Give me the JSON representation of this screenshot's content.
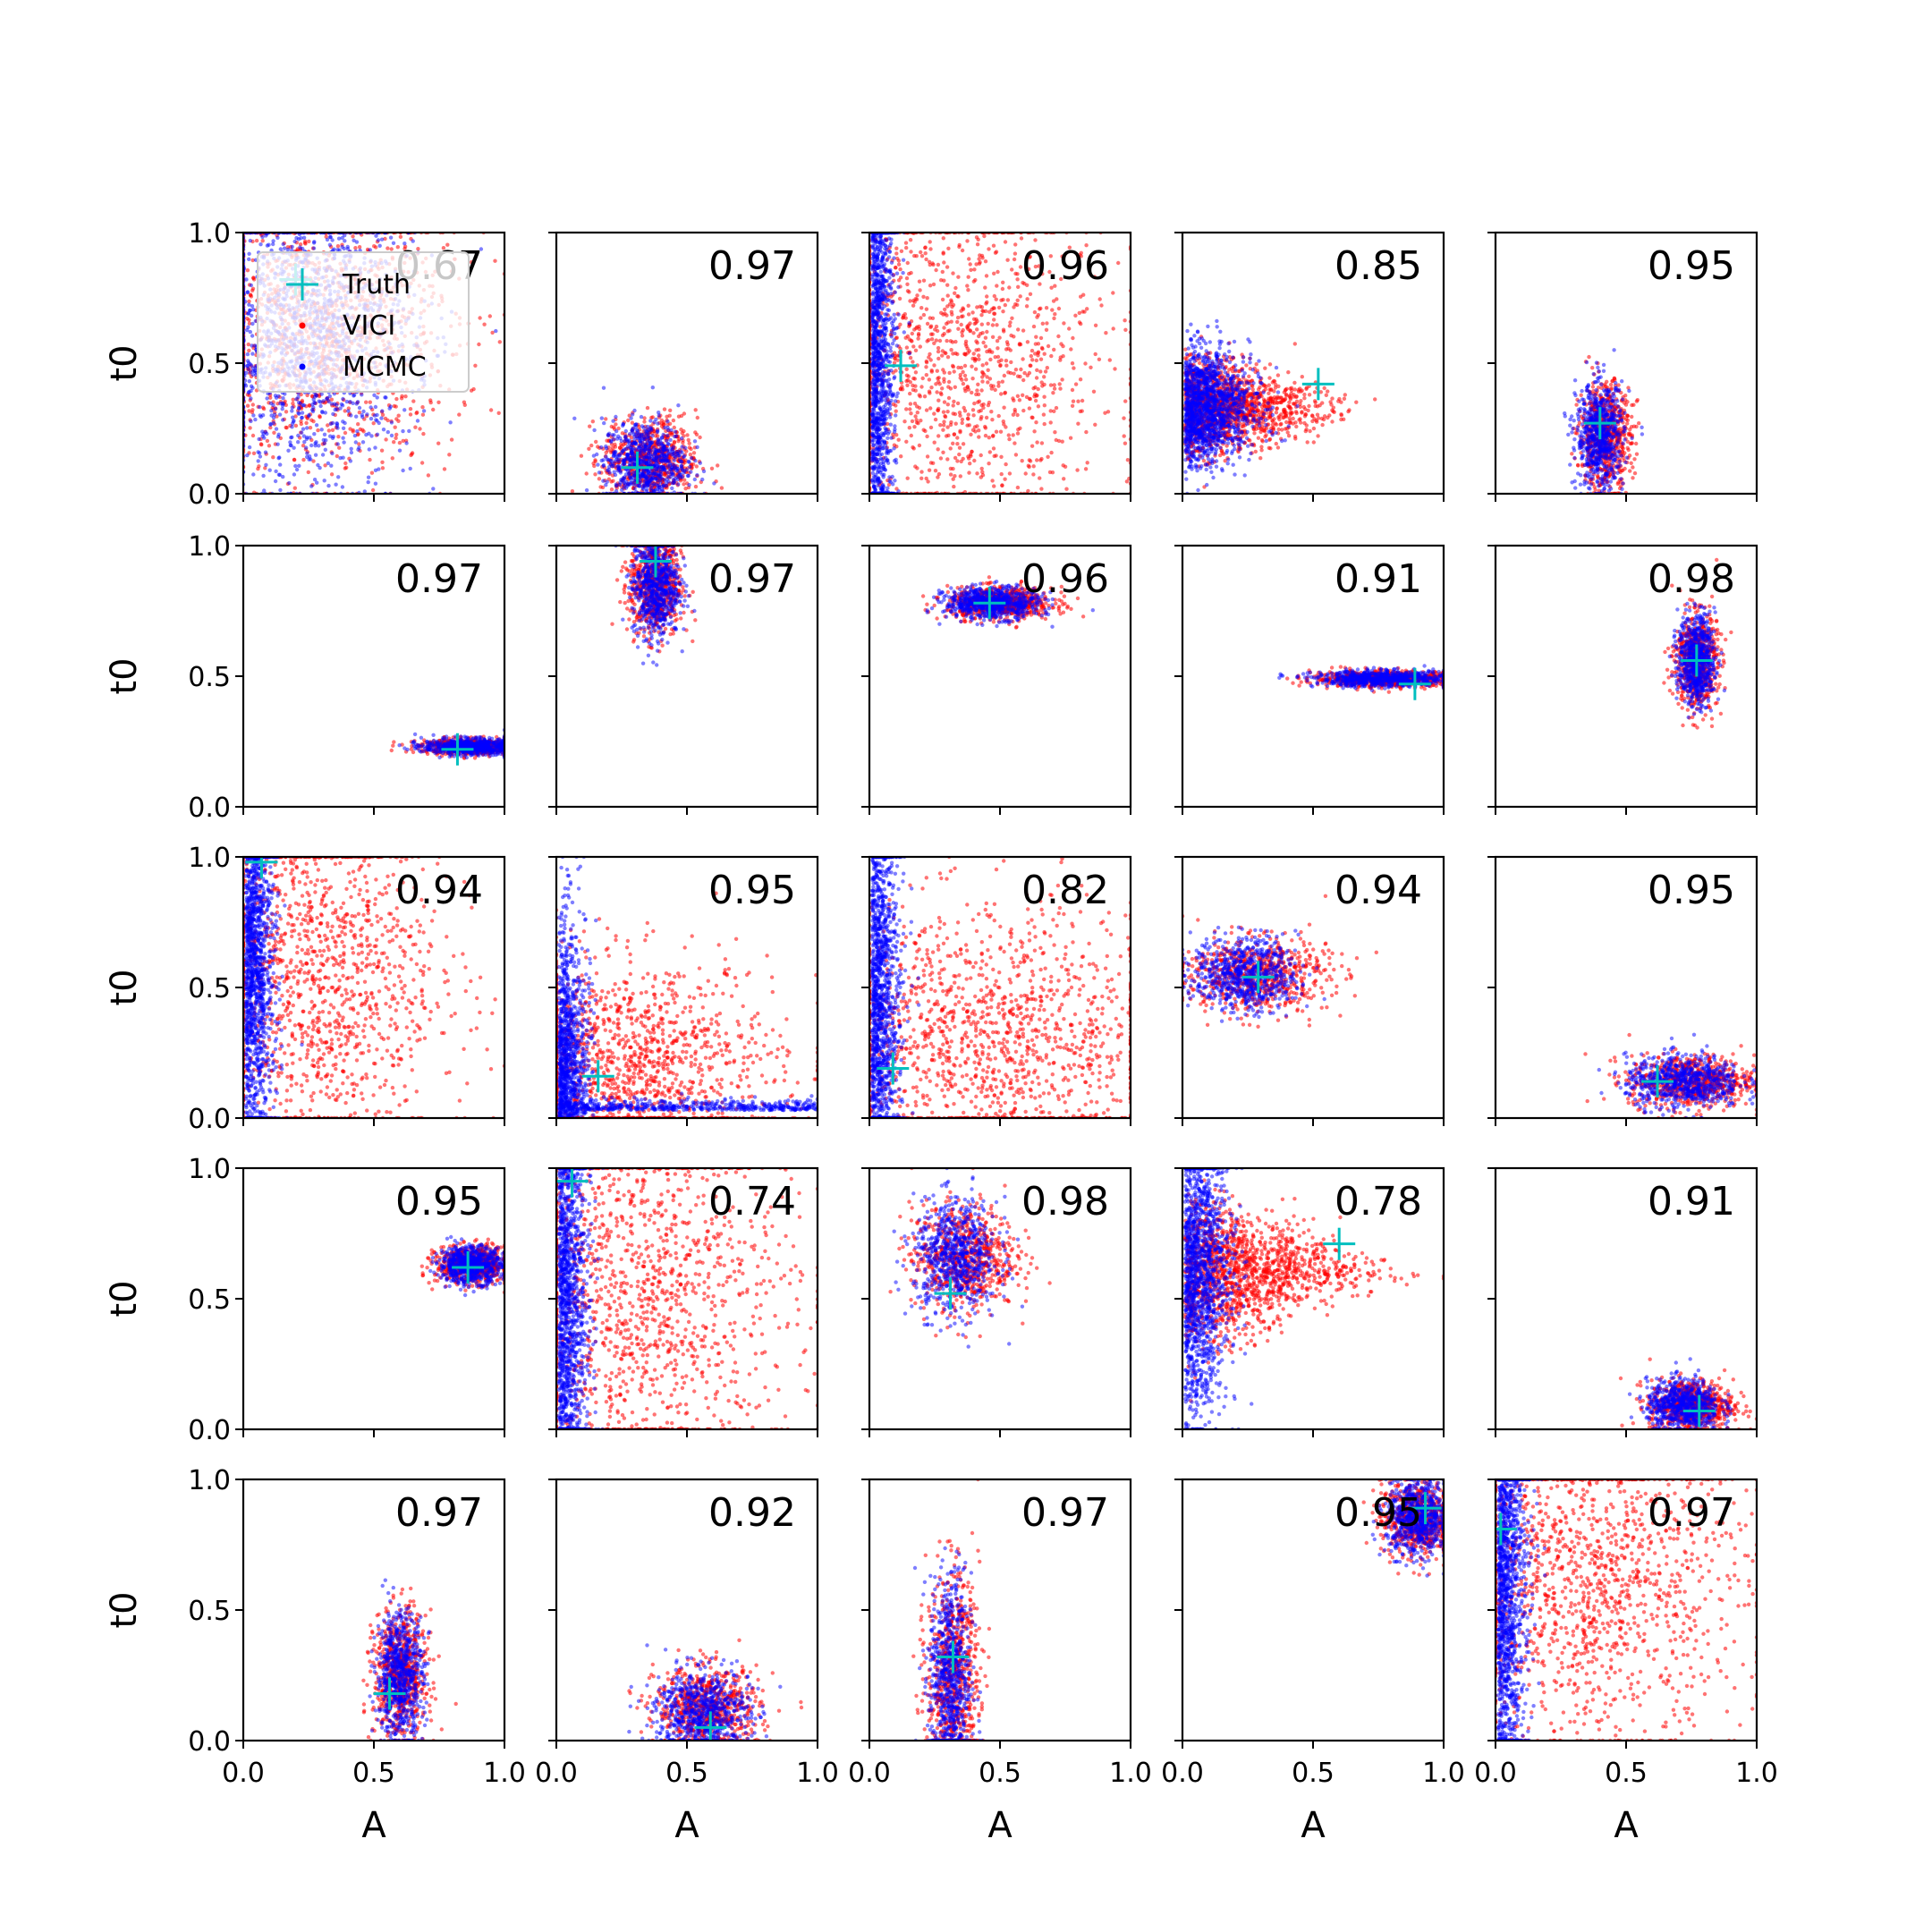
{
  "chart_data": {
    "type": "scatter",
    "grid_rows": 5,
    "grid_cols": 5,
    "xlabel": "A",
    "ylabel": "t0",
    "xlim": [
      0.0,
      1.0
    ],
    "ylim": [
      0.0,
      1.0
    ],
    "xticks": [
      "0.0",
      "0.5",
      "1.0"
    ],
    "yticks": [
      "0.0",
      "0.5",
      "1.0"
    ],
    "grid": false,
    "legend": {
      "placement": "upper-left of first panel",
      "entries": [
        {
          "label": "Truth",
          "marker": "plus",
          "color": "#00bfbf"
        },
        {
          "label": "VICI",
          "marker": "dot",
          "color": "#ff0000"
        },
        {
          "label": "MCMC",
          "marker": "dot",
          "color": "#0000ff"
        }
      ]
    },
    "colors": {
      "truth": "#00bfbf",
      "vici": "#ff0000",
      "mcmc": "#0000ff"
    },
    "panels": [
      {
        "overlap": "0.67",
        "truth": [
          0.2,
          0.82
        ],
        "kind": "wide",
        "vici": {
          "center": [
            0.3,
            0.6
          ],
          "spread": [
            0.25,
            0.25
          ]
        },
        "mcmc": {
          "center": [
            0.25,
            0.6
          ],
          "spread": [
            0.2,
            0.28
          ]
        }
      },
      {
        "overlap": "0.97",
        "truth": [
          0.31,
          0.1
        ],
        "kind": "blob",
        "vici": {
          "center": [
            0.36,
            0.13
          ],
          "spread": [
            0.09,
            0.08
          ]
        },
        "mcmc": {
          "center": [
            0.34,
            0.12
          ],
          "spread": [
            0.08,
            0.08
          ]
        }
      },
      {
        "overlap": "0.96",
        "truth": [
          0.12,
          0.49
        ],
        "kind": "lefttail",
        "vici": {
          "center": [
            0.3,
            0.5
          ],
          "spread": [
            0.3,
            0.32
          ]
        },
        "mcmc": {
          "center": [
            0.05,
            0.5
          ],
          "spread": [
            0.04,
            0.45
          ]
        }
      },
      {
        "overlap": "0.85",
        "truth": [
          0.52,
          0.42
        ],
        "kind": "horn",
        "vici": {
          "center": [
            0.25,
            0.33
          ],
          "spread": [
            0.22,
            0.1
          ]
        },
        "mcmc": {
          "center": [
            0.15,
            0.33
          ],
          "spread": [
            0.12,
            0.12
          ]
        }
      },
      {
        "overlap": "0.95",
        "truth": [
          0.4,
          0.27
        ],
        "kind": "blob",
        "vici": {
          "center": [
            0.42,
            0.22
          ],
          "spread": [
            0.05,
            0.1
          ]
        },
        "mcmc": {
          "center": [
            0.4,
            0.22
          ],
          "spread": [
            0.045,
            0.1
          ]
        }
      },
      {
        "overlap": "0.97",
        "truth": [
          0.82,
          0.22
        ],
        "kind": "blob",
        "vici": {
          "center": [
            0.88,
            0.23
          ],
          "spread": [
            0.1,
            0.015
          ]
        },
        "mcmc": {
          "center": [
            0.87,
            0.23
          ],
          "spread": [
            0.09,
            0.015
          ]
        }
      },
      {
        "overlap": "0.97",
        "truth": [
          0.38,
          0.94
        ],
        "kind": "blob",
        "vici": {
          "center": [
            0.38,
            0.85
          ],
          "spread": [
            0.05,
            0.1
          ]
        },
        "mcmc": {
          "center": [
            0.38,
            0.85
          ],
          "spread": [
            0.045,
            0.1
          ]
        }
      },
      {
        "overlap": "0.96",
        "truth": [
          0.46,
          0.78
        ],
        "kind": "blob",
        "vici": {
          "center": [
            0.5,
            0.78
          ],
          "spread": [
            0.1,
            0.03
          ]
        },
        "mcmc": {
          "center": [
            0.47,
            0.78
          ],
          "spread": [
            0.09,
            0.03
          ]
        }
      },
      {
        "overlap": "0.91",
        "truth": [
          0.89,
          0.47
        ],
        "kind": "blob",
        "vici": {
          "center": [
            0.78,
            0.49
          ],
          "spread": [
            0.14,
            0.015
          ]
        },
        "mcmc": {
          "center": [
            0.77,
            0.49
          ],
          "spread": [
            0.13,
            0.015
          ]
        }
      },
      {
        "overlap": "0.98",
        "truth": [
          0.77,
          0.56
        ],
        "kind": "blob",
        "vici": {
          "center": [
            0.77,
            0.56
          ],
          "spread": [
            0.04,
            0.09
          ]
        },
        "mcmc": {
          "center": [
            0.77,
            0.56
          ],
          "spread": [
            0.035,
            0.085
          ]
        }
      },
      {
        "overlap": "0.94",
        "truth": [
          0.07,
          0.98
        ],
        "kind": "lefttail",
        "vici": {
          "center": [
            0.25,
            0.55
          ],
          "spread": [
            0.25,
            0.35
          ]
        },
        "mcmc": {
          "center": [
            0.05,
            0.6
          ],
          "spread": [
            0.05,
            0.35
          ]
        }
      },
      {
        "overlap": "0.95",
        "truth": [
          0.16,
          0.16
        ],
        "kind": "corner",
        "vici": {
          "center": [
            0.25,
            0.2
          ],
          "spread": [
            0.3,
            0.2
          ]
        },
        "mcmc": {
          "center": [
            0.05,
            0.3
          ],
          "spread": [
            0.05,
            0.35
          ]
        }
      },
      {
        "overlap": "0.82",
        "truth": [
          0.09,
          0.19
        ],
        "kind": "lefttail",
        "vici": {
          "center": [
            0.45,
            0.3
          ],
          "spread": [
            0.35,
            0.25
          ]
        },
        "mcmc": {
          "center": [
            0.05,
            0.4
          ],
          "spread": [
            0.05,
            0.4
          ]
        }
      },
      {
        "overlap": "0.94",
        "truth": [
          0.29,
          0.54
        ],
        "kind": "blob",
        "vici": {
          "center": [
            0.28,
            0.55
          ],
          "spread": [
            0.14,
            0.07
          ]
        },
        "mcmc": {
          "center": [
            0.24,
            0.55
          ],
          "spread": [
            0.1,
            0.07
          ]
        }
      },
      {
        "overlap": "0.95",
        "truth": [
          0.62,
          0.14
        ],
        "kind": "blob",
        "vici": {
          "center": [
            0.75,
            0.14
          ],
          "spread": [
            0.12,
            0.05
          ]
        },
        "mcmc": {
          "center": [
            0.72,
            0.14
          ],
          "spread": [
            0.11,
            0.05
          ]
        }
      },
      {
        "overlap": "0.95",
        "truth": [
          0.86,
          0.62
        ],
        "kind": "blob",
        "vici": {
          "center": [
            0.88,
            0.63
          ],
          "spread": [
            0.07,
            0.035
          ]
        },
        "mcmc": {
          "center": [
            0.87,
            0.63
          ],
          "spread": [
            0.06,
            0.035
          ]
        }
      },
      {
        "overlap": "0.74",
        "truth": [
          0.06,
          0.95
        ],
        "kind": "lefttail",
        "vici": {
          "center": [
            0.3,
            0.5
          ],
          "spread": [
            0.3,
            0.35
          ]
        },
        "mcmc": {
          "center": [
            0.05,
            0.5
          ],
          "spread": [
            0.05,
            0.42
          ]
        }
      },
      {
        "overlap": "0.98",
        "truth": [
          0.31,
          0.52
        ],
        "kind": "blob",
        "vici": {
          "center": [
            0.36,
            0.66
          ],
          "spread": [
            0.1,
            0.1
          ]
        },
        "mcmc": {
          "center": [
            0.33,
            0.66
          ],
          "spread": [
            0.08,
            0.11
          ]
        }
      },
      {
        "overlap": "0.78",
        "truth": [
          0.6,
          0.71
        ],
        "kind": "horn",
        "vici": {
          "center": [
            0.4,
            0.6
          ],
          "spread": [
            0.3,
            0.15
          ]
        },
        "mcmc": {
          "center": [
            0.1,
            0.6
          ],
          "spread": [
            0.08,
            0.3
          ]
        }
      },
      {
        "overlap": "0.91",
        "truth": [
          0.78,
          0.07
        ],
        "kind": "blob",
        "vici": {
          "center": [
            0.75,
            0.09
          ],
          "spread": [
            0.08,
            0.05
          ]
        },
        "mcmc": {
          "center": [
            0.72,
            0.09
          ],
          "spread": [
            0.07,
            0.05
          ]
        }
      },
      {
        "overlap": "0.97",
        "truth": [
          0.56,
          0.18
        ],
        "kind": "blob",
        "vici": {
          "center": [
            0.6,
            0.25
          ],
          "spread": [
            0.05,
            0.12
          ]
        },
        "mcmc": {
          "center": [
            0.6,
            0.25
          ],
          "spread": [
            0.045,
            0.12
          ]
        }
      },
      {
        "overlap": "0.92",
        "truth": [
          0.59,
          0.05
        ],
        "kind": "blob",
        "vici": {
          "center": [
            0.58,
            0.12
          ],
          "spread": [
            0.1,
            0.08
          ]
        },
        "mcmc": {
          "center": [
            0.56,
            0.11
          ],
          "spread": [
            0.09,
            0.08
          ]
        }
      },
      {
        "overlap": "0.97",
        "truth": [
          0.32,
          0.32
        ],
        "kind": "blob",
        "vici": {
          "center": [
            0.32,
            0.25
          ],
          "spread": [
            0.05,
            0.2
          ]
        },
        "mcmc": {
          "center": [
            0.31,
            0.24
          ],
          "spread": [
            0.04,
            0.2
          ]
        }
      },
      {
        "overlap": "0.95",
        "truth": [
          0.93,
          0.89
        ],
        "kind": "blob",
        "vici": {
          "center": [
            0.9,
            0.85
          ],
          "spread": [
            0.07,
            0.07
          ]
        },
        "mcmc": {
          "center": [
            0.9,
            0.85
          ],
          "spread": [
            0.06,
            0.07
          ]
        }
      },
      {
        "overlap": "0.97",
        "truth": [
          0.02,
          0.81
        ],
        "kind": "lefttail",
        "vici": {
          "center": [
            0.35,
            0.6
          ],
          "spread": [
            0.3,
            0.3
          ]
        },
        "mcmc": {
          "center": [
            0.05,
            0.6
          ],
          "spread": [
            0.05,
            0.4
          ]
        }
      }
    ]
  }
}
